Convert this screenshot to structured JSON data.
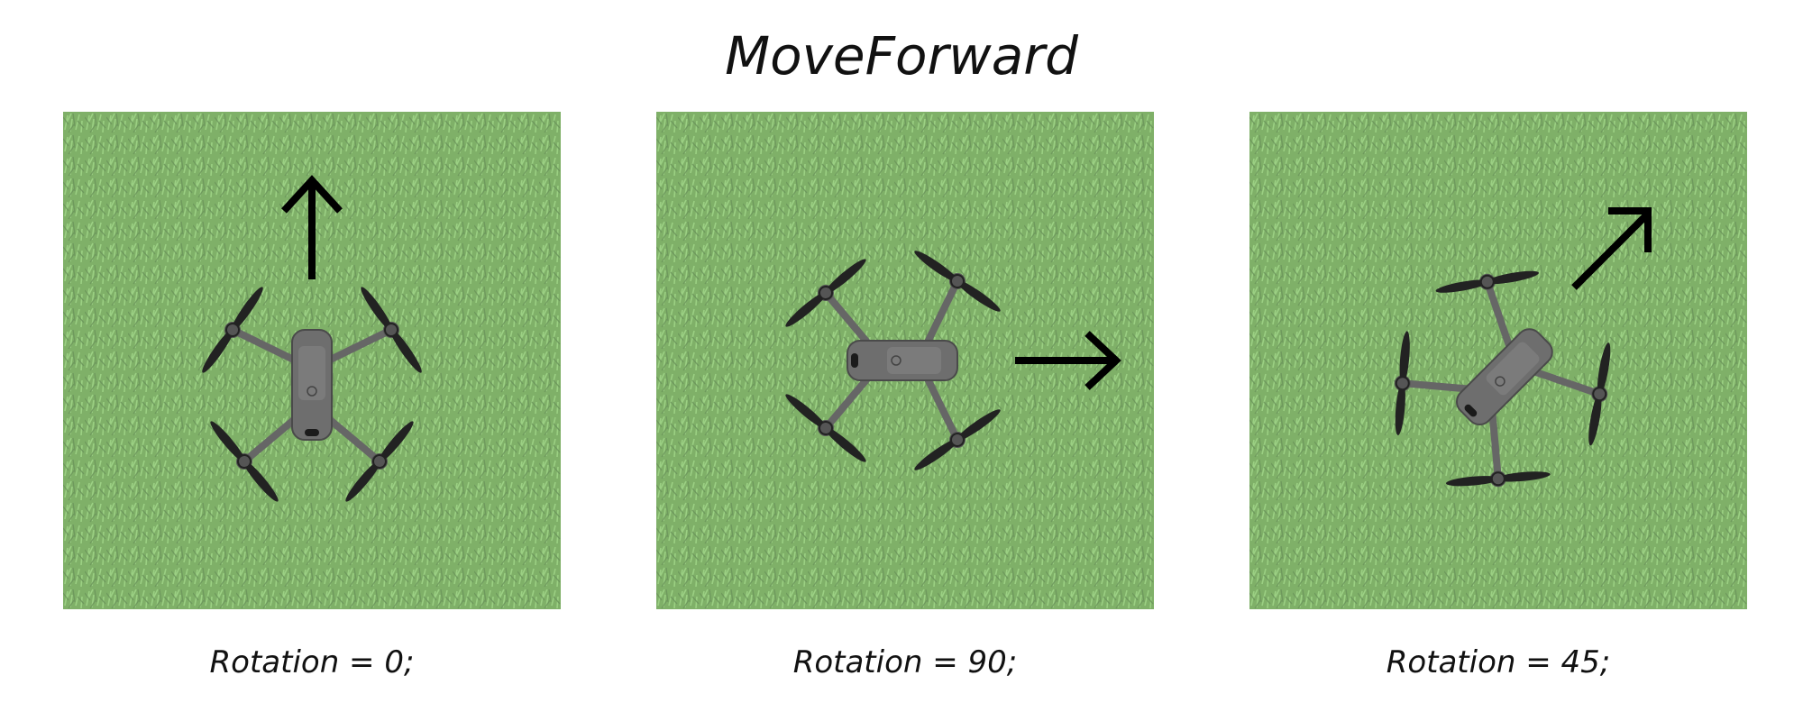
{
  "title": "MoveForward",
  "panels": [
    {
      "caption": "Rotation = 0;",
      "rotation_deg": 0,
      "arrow_icon": "arrow-up-icon"
    },
    {
      "caption": "Rotation = 90;",
      "rotation_deg": 90,
      "arrow_icon": "arrow-right-icon"
    },
    {
      "caption": "Rotation = 45;",
      "rotation_deg": 45,
      "arrow_icon": "arrow-up-right-icon"
    }
  ],
  "colors": {
    "grass": "#7fb068",
    "grass_dark": "#6a945a",
    "grass_light": "#9bd083",
    "drone_body": "#6e6e6e",
    "drone_dark": "#4a4a4a",
    "propeller": "#222222",
    "arrow": "#000000"
  }
}
